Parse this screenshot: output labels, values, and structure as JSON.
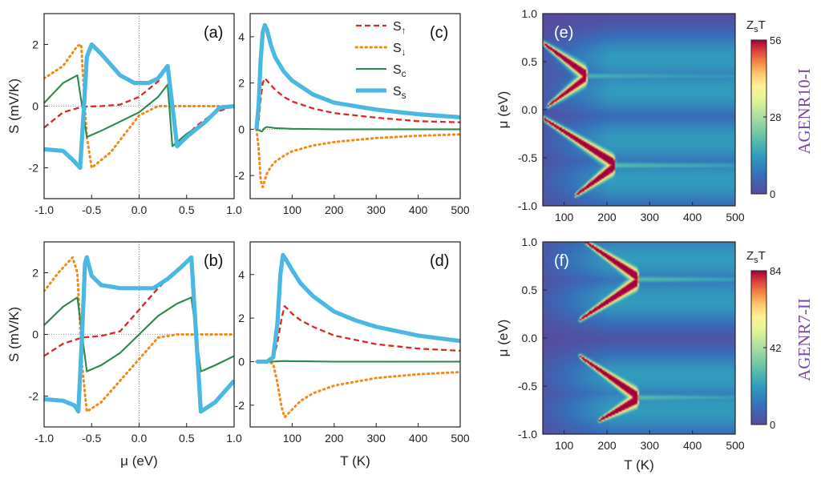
{
  "colors": {
    "S_up": "#d62a22",
    "S_down": "#f28a17",
    "S_c": "#2a8a4a",
    "S_s": "#4ab8e0",
    "side_label": "#7b4ca6"
  },
  "chart_data": [
    {
      "id": "a",
      "type": "line",
      "panel_label": "(a)",
      "xlabel": "",
      "ylabel": "S (mV/K)",
      "xlim": [
        -1.0,
        1.0
      ],
      "ylim": [
        -3,
        3
      ],
      "xticks": [
        "-1.0",
        "-0.5",
        "0.0",
        "0.5",
        "1.0"
      ],
      "yticks": [
        "-2",
        "0",
        "2"
      ],
      "series": [
        {
          "key": "S_up",
          "x": [
            -1.0,
            -0.8,
            -0.6,
            -0.4,
            -0.2,
            0.0,
            0.2,
            0.3,
            0.4,
            0.6,
            0.8,
            1.0
          ],
          "y": [
            -0.7,
            -0.2,
            -0.02,
            0.0,
            0.05,
            0.3,
            0.8,
            1.3,
            -1.3,
            -0.65,
            -0.2,
            0.0
          ]
        },
        {
          "key": "S_down",
          "x": [
            -1.0,
            -0.8,
            -0.65,
            -0.61,
            -0.55,
            -0.5,
            -0.3,
            -0.1,
            0.0,
            0.2,
            0.4,
            0.7,
            1.0
          ],
          "y": [
            0.9,
            1.3,
            1.95,
            2.0,
            -1.0,
            -2.0,
            -1.5,
            -0.7,
            -0.3,
            0.0,
            0.0,
            0.0,
            0.0
          ]
        },
        {
          "key": "S_c",
          "x": [
            -1.0,
            -0.8,
            -0.65,
            -0.6,
            -0.55,
            -0.4,
            -0.2,
            0.0,
            0.2,
            0.3,
            0.35,
            0.5,
            0.7,
            0.85,
            1.0
          ],
          "y": [
            0.1,
            0.75,
            1.0,
            0.0,
            -1.0,
            -0.8,
            -0.5,
            -0.2,
            0.3,
            0.7,
            -1.3,
            -0.9,
            -0.5,
            -0.1,
            0.0
          ]
        },
        {
          "key": "S_s",
          "x": [
            -1.0,
            -0.8,
            -0.68,
            -0.62,
            -0.58,
            -0.55,
            -0.5,
            -0.4,
            -0.2,
            -0.05,
            0.1,
            0.2,
            0.3,
            0.35,
            0.4,
            0.5,
            0.7,
            0.85,
            1.0
          ],
          "y": [
            -1.4,
            -1.45,
            -1.8,
            -2.0,
            0.0,
            1.6,
            2.0,
            1.7,
            1.0,
            0.75,
            0.75,
            0.9,
            1.3,
            0.0,
            -1.3,
            -1.0,
            -0.5,
            -0.05,
            0.0
          ]
        }
      ]
    },
    {
      "id": "b",
      "type": "line",
      "panel_label": "(b)",
      "xlabel": "μ (eV)",
      "ylabel": "S (mV/K)",
      "xlim": [
        -1.0,
        1.0
      ],
      "ylim": [
        -3,
        3
      ],
      "xticks": [
        "-1.0",
        "-0.5",
        "0.0",
        "0.5",
        "1.0"
      ],
      "yticks": [
        "-2",
        "0",
        "2"
      ],
      "series": [
        {
          "key": "S_up",
          "x": [
            -1.0,
            -0.8,
            -0.6,
            -0.4,
            -0.2,
            0.0,
            0.2,
            0.4,
            0.55,
            0.6,
            0.65,
            0.8,
            1.0
          ],
          "y": [
            -0.7,
            -0.3,
            -0.1,
            -0.05,
            0.1,
            0.8,
            1.5,
            2.1,
            2.5,
            0.0,
            -2.5,
            -2.2,
            -1.5
          ]
        },
        {
          "key": "S_down",
          "x": [
            -1.0,
            -0.85,
            -0.7,
            -0.65,
            -0.6,
            -0.55,
            -0.4,
            -0.2,
            0.0,
            0.2,
            0.4,
            0.7,
            1.0
          ],
          "y": [
            1.4,
            2.0,
            2.5,
            2.0,
            -1.0,
            -2.5,
            -2.2,
            -1.5,
            -0.8,
            -0.1,
            0.0,
            0.0,
            0.0
          ]
        },
        {
          "key": "S_c",
          "x": [
            -1.0,
            -0.8,
            -0.65,
            -0.6,
            -0.55,
            -0.4,
            -0.2,
            0.0,
            0.2,
            0.4,
            0.55,
            0.6,
            0.65,
            0.8,
            1.0
          ],
          "y": [
            0.3,
            0.9,
            1.2,
            0.0,
            -1.2,
            -1.0,
            -0.6,
            0.0,
            0.6,
            1.0,
            1.2,
            0.0,
            -1.2,
            -1.0,
            -0.7
          ]
        },
        {
          "key": "S_s",
          "x": [
            -1.0,
            -0.8,
            -0.68,
            -0.64,
            -0.6,
            -0.57,
            -0.55,
            -0.5,
            -0.4,
            -0.2,
            0.0,
            0.15,
            0.3,
            0.45,
            0.55,
            0.6,
            0.65,
            0.8,
            1.0
          ],
          "y": [
            -2.1,
            -2.15,
            -2.3,
            -2.5,
            0.0,
            2.3,
            2.5,
            1.9,
            1.6,
            1.5,
            1.5,
            1.5,
            1.8,
            2.2,
            2.5,
            0.0,
            -2.5,
            -2.2,
            -1.5
          ]
        }
      ]
    },
    {
      "id": "c",
      "type": "line",
      "panel_label": "(c)",
      "xlabel": "",
      "ylabel": "",
      "xlim": [
        0,
        500
      ],
      "ylim": [
        -3,
        5
      ],
      "xticks": [
        "100",
        "200",
        "300",
        "400",
        "500"
      ],
      "yticks": [
        "-2",
        "0",
        "2",
        "4"
      ],
      "legend": {
        "position": "top-right",
        "entries": [
          {
            "key": "S_up",
            "main": "S",
            "sub": "↑"
          },
          {
            "key": "S_down",
            "main": "S",
            "sub": "↓"
          },
          {
            "key": "S_c",
            "main": "S",
            "sub": "c"
          },
          {
            "key": "S_s",
            "main": "S",
            "sub": "s"
          }
        ]
      },
      "series": [
        {
          "key": "S_up",
          "x": [
            15,
            20,
            25,
            30,
            35,
            40,
            50,
            60,
            80,
            100,
            150,
            200,
            300,
            400,
            500
          ],
          "y": [
            0.0,
            0.3,
            1.3,
            2.0,
            2.2,
            2.1,
            1.9,
            1.7,
            1.4,
            1.2,
            0.9,
            0.7,
            0.5,
            0.35,
            0.3
          ]
        },
        {
          "key": "S_down",
          "x": [
            15,
            20,
            25,
            30,
            35,
            40,
            50,
            60,
            80,
            100,
            150,
            200,
            300,
            400,
            500
          ],
          "y": [
            0.0,
            -0.8,
            -2.2,
            -2.5,
            -2.2,
            -1.9,
            -1.6,
            -1.4,
            -1.15,
            -0.95,
            -0.7,
            -0.55,
            -0.38,
            -0.28,
            -0.22
          ]
        },
        {
          "key": "S_c",
          "x": [
            15,
            22,
            28,
            34,
            40,
            60,
            100,
            200,
            300,
            400,
            500
          ],
          "y": [
            0.0,
            -0.05,
            -0.1,
            0.05,
            0.1,
            0.05,
            0.02,
            0.0,
            0.0,
            0.0,
            0.0
          ]
        },
        {
          "key": "S_s",
          "x": [
            15,
            20,
            25,
            30,
            35,
            40,
            50,
            60,
            80,
            100,
            150,
            200,
            300,
            400,
            500
          ],
          "y": [
            0.0,
            1.0,
            3.0,
            4.2,
            4.5,
            4.3,
            3.6,
            3.1,
            2.5,
            2.1,
            1.5,
            1.15,
            0.85,
            0.65,
            0.52
          ]
        }
      ]
    },
    {
      "id": "d",
      "type": "line",
      "panel_label": "(d)",
      "xlabel": "T (K)",
      "ylabel": "",
      "xlim": [
        0,
        500
      ],
      "ylim": [
        -3,
        5.5
      ],
      "xticks": [
        "100",
        "200",
        "300",
        "400",
        "500"
      ],
      "yticks": [
        "-2",
        "0",
        "2",
        "4"
      ],
      "series": [
        {
          "key": "S_up",
          "x": [
            15,
            40,
            55,
            65,
            75,
            82,
            90,
            100,
            120,
            150,
            200,
            300,
            400,
            500
          ],
          "y": [
            0.0,
            0.0,
            0.1,
            0.9,
            2.0,
            2.55,
            2.4,
            2.2,
            1.9,
            1.6,
            1.2,
            0.8,
            0.6,
            0.5
          ]
        },
        {
          "key": "S_down",
          "x": [
            15,
            40,
            55,
            65,
            75,
            82,
            90,
            100,
            120,
            150,
            200,
            300,
            400,
            500
          ],
          "y": [
            0.0,
            0.0,
            -0.1,
            -1.0,
            -2.1,
            -2.55,
            -2.4,
            -2.2,
            -1.8,
            -1.45,
            -1.1,
            -0.75,
            -0.58,
            -0.48
          ]
        },
        {
          "key": "S_c",
          "x": [
            15,
            50,
            70,
            80,
            100,
            200,
            300,
            400,
            500
          ],
          "y": [
            0.0,
            0.0,
            0.02,
            0.03,
            0.02,
            0.0,
            0.0,
            0.0,
            0.0
          ]
        },
        {
          "key": "S_s",
          "x": [
            15,
            40,
            55,
            65,
            72,
            78,
            85,
            100,
            120,
            150,
            200,
            250,
            300,
            400,
            500
          ],
          "y": [
            0.0,
            0.0,
            0.2,
            1.8,
            4.0,
            4.9,
            4.7,
            4.2,
            3.6,
            3.0,
            2.3,
            1.9,
            1.6,
            1.2,
            0.95
          ]
        }
      ]
    },
    {
      "id": "e",
      "type": "heatmap",
      "panel_label": "(e)",
      "xlabel": "",
      "ylabel": "μ (eV)",
      "xlim": [
        50,
        500
      ],
      "ylim": [
        -1.0,
        1.0
      ],
      "xticks": [
        "100",
        "200",
        "300",
        "400",
        "500"
      ],
      "yticks": [
        "-1.0",
        "-0.5",
        "0.0",
        "0.5",
        "1.0"
      ],
      "side_label": "AGENR10-I",
      "colorbar": {
        "title": "ZsT",
        "title_main": "Z",
        "title_sub": "s",
        "title_end": "T",
        "min": 0,
        "max": 56,
        "ticks": [
          "0",
          "28",
          "56"
        ]
      },
      "ridges": [
        {
          "T0": 55,
          "mu0": 0.68,
          "T1": 150,
          "mu1": 0.37,
          "peak": 1.0
        },
        {
          "T0": 65,
          "mu0": 0.05,
          "T1": 150,
          "mu1": 0.33,
          "peak": 0.9
        },
        {
          "T0": 55,
          "mu0": -0.1,
          "T1": 215,
          "mu1": -0.55,
          "peak": 1.0
        },
        {
          "T0": 130,
          "mu0": -0.88,
          "T1": 215,
          "mu1": -0.6,
          "peak": 1.0
        }
      ],
      "bands": [
        {
          "T_start": 150,
          "mu": 0.35,
          "peak": 0.32
        },
        {
          "T_start": 215,
          "mu": -0.58,
          "peak": 0.35
        }
      ]
    },
    {
      "id": "f",
      "type": "heatmap",
      "panel_label": "(f)",
      "xlabel": "T (K)",
      "ylabel": "μ (eV)",
      "xlim": [
        50,
        500
      ],
      "ylim": [
        -1.0,
        1.0
      ],
      "xticks": [
        "100",
        "200",
        "300",
        "400",
        "500"
      ],
      "yticks": [
        "-1.0",
        "-0.5",
        "0.0",
        "0.5",
        "1.0"
      ],
      "side_label": "AGENR7-II",
      "colorbar": {
        "title": "ZsT",
        "title_main": "Z",
        "title_sub": "s",
        "title_end": "T",
        "min": 0,
        "max": 84,
        "ticks": [
          "0",
          "42",
          "84"
        ]
      },
      "ridges": [
        {
          "T0": 150,
          "mu0": 1.0,
          "T1": 270,
          "mu1": 0.64,
          "peak": 1.0
        },
        {
          "T0": 140,
          "mu0": 0.2,
          "T1": 270,
          "mu1": 0.58,
          "peak": 1.0
        },
        {
          "T0": 140,
          "mu0": -0.2,
          "T1": 270,
          "mu1": -0.6,
          "peak": 1.0
        },
        {
          "T0": 185,
          "mu0": -0.85,
          "T1": 270,
          "mu1": -0.64,
          "peak": 1.0
        }
      ],
      "bands": [
        {
          "T_start": 270,
          "mu": 0.61,
          "peak": 0.35
        },
        {
          "T_start": 270,
          "mu": -0.62,
          "peak": 0.35
        }
      ]
    }
  ]
}
